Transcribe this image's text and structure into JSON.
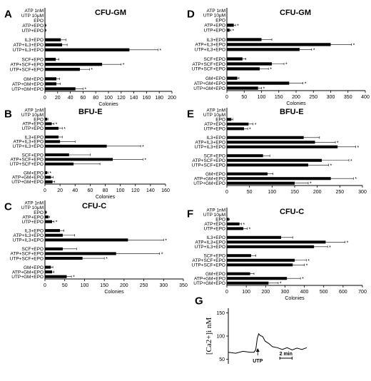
{
  "chart_data": [
    {
      "id": "A",
      "panel_label": "A",
      "type": "bar",
      "orientation": "horizontal",
      "title": "CFU-GM",
      "xlabel": "Colonies",
      "xlim": [
        0,
        200
      ],
      "ticks": [
        0,
        20,
        40,
        60,
        80,
        100,
        120,
        140,
        160,
        180,
        200
      ],
      "groups": [
        {
          "categories": [
            "ATP 1nM",
            "UTP 10μM",
            "EPO",
            "ATP+EPO",
            "UTP+EPO"
          ],
          "values": [
            0,
            0,
            0,
            1,
            1
          ],
          "errors": [
            0,
            0,
            0,
            1,
            1
          ],
          "significant": [
            false,
            false,
            false,
            false,
            false
          ]
        },
        {
          "categories": [
            "IL3+EPO",
            "ATP+IL3+EPO",
            "UTP+IL3+EPO"
          ],
          "values": [
            25,
            27,
            133
          ],
          "errors": [
            8,
            8,
            45
          ],
          "significant": [
            false,
            false,
            true
          ]
        },
        {
          "categories": [
            "SCF+EPO",
            "ATP+SCF+EPO",
            "UTP+SCF+EPO"
          ],
          "values": [
            17,
            90,
            55
          ],
          "errors": [
            5,
            30,
            15
          ],
          "significant": [
            false,
            true,
            true
          ]
        },
        {
          "categories": [
            "GM+EPO",
            "ATP+GM+EPO",
            "UTP+GM+EPO"
          ],
          "values": [
            18,
            18,
            48
          ],
          "errors": [
            5,
            6,
            12
          ],
          "significant": [
            false,
            false,
            true
          ]
        }
      ]
    },
    {
      "id": "B",
      "panel_label": "B",
      "type": "bar",
      "orientation": "horizontal",
      "title": "BFU-E",
      "xlabel": "Colonies",
      "xlim": [
        0,
        160
      ],
      "ticks": [
        0,
        20,
        40,
        60,
        80,
        100,
        120,
        140,
        160
      ],
      "groups": [
        {
          "categories": [
            "ATP 1nM",
            "UTP 10μM",
            "EPO",
            "ATP+EPO",
            "UTP+EPO"
          ],
          "values": [
            0,
            0,
            3,
            9,
            18
          ],
          "errors": [
            0,
            0,
            1,
            3,
            5
          ],
          "significant": [
            false,
            false,
            false,
            true,
            true
          ]
        },
        {
          "categories": [
            "IL3+EPO",
            "ATP+IL3+EPO",
            "UTP+IL3+EPO"
          ],
          "values": [
            18,
            20,
            82
          ],
          "errors": [
            5,
            20,
            45
          ],
          "significant": [
            false,
            false,
            true
          ]
        },
        {
          "categories": [
            "SCF+EPO",
            "ATP+SCF+EPO",
            "UTP+SCF+EPO"
          ],
          "values": [
            32,
            90,
            38
          ],
          "errors": [
            28,
            40,
            35
          ],
          "significant": [
            false,
            true,
            false
          ]
        },
        {
          "categories": [
            "GM+EPO",
            "ATP+GM+EPO",
            "UTP+GM+EPO"
          ],
          "values": [
            3,
            8,
            10
          ],
          "errors": [
            1,
            3,
            3
          ],
          "significant": [
            true,
            false,
            false
          ]
        }
      ]
    },
    {
      "id": "C",
      "panel_label": "C",
      "type": "bar",
      "orientation": "horizontal",
      "title": "CFU-C",
      "xlabel": "Colonies",
      "xlim": [
        0,
        350
      ],
      "ticks": [
        0,
        50,
        100,
        150,
        200,
        250,
        300,
        350
      ],
      "groups": [
        {
          "categories": [
            "ATP 1nM",
            "UTP 10μM",
            "EPO",
            "ATP+EPO",
            "UTP+EPO"
          ],
          "values": [
            0,
            0,
            3,
            9,
            18
          ],
          "errors": [
            0,
            0,
            1,
            3,
            5
          ],
          "significant": [
            false,
            false,
            false,
            false,
            true
          ]
        },
        {
          "categories": [
            "IL3+EPO",
            "ATP+IL3+EPO",
            "UTP+IL3+EPO"
          ],
          "values": [
            38,
            45,
            210
          ],
          "errors": [
            10,
            30,
            90
          ],
          "significant": [
            false,
            false,
            true
          ]
        },
        {
          "categories": [
            "SCF+EPO",
            "ATP+SCF+EPO",
            "UTP+SCF+EPO"
          ],
          "values": [
            45,
            180,
            95
          ],
          "errors": [
            35,
            110,
            55
          ],
          "significant": [
            false,
            true,
            true
          ]
        },
        {
          "categories": [
            "GM+EPO",
            "ATP+GM+EPO",
            "UTP+GM+EPO"
          ],
          "values": [
            15,
            18,
            55
          ],
          "errors": [
            5,
            5,
            12
          ],
          "significant": [
            false,
            false,
            true
          ]
        }
      ]
    },
    {
      "id": "D",
      "panel_label": "D",
      "type": "bar",
      "orientation": "horizontal",
      "title": "CFU-GM",
      "xlabel": "Colonies",
      "xlim": [
        0,
        400
      ],
      "ticks": [
        0,
        50,
        100,
        150,
        200,
        250,
        300,
        350,
        400
      ],
      "groups": [
        {
          "categories": [
            "ATP 1nM",
            "UTP 10μM",
            "EPO",
            "ATP+EPO",
            "UTP+EPO"
          ],
          "values": [
            0,
            0,
            0,
            20,
            8
          ],
          "errors": [
            0,
            0,
            0,
            5,
            3
          ],
          "significant": [
            false,
            false,
            false,
            true,
            true
          ]
        },
        {
          "categories": [
            "IL3+EPO",
            "ATP+IL3+EPO",
            "UTP+IL3+EPO"
          ],
          "values": [
            100,
            300,
            210
          ],
          "errors": [
            30,
            60,
            35
          ],
          "significant": [
            false,
            true,
            true
          ]
        },
        {
          "categories": [
            "SCF+EPO",
            "ATP+SCF+EPO",
            "UTP+SCF+EPO"
          ],
          "values": [
            45,
            130,
            95
          ],
          "errors": [
            10,
            35,
            25
          ],
          "significant": [
            false,
            true,
            true
          ]
        },
        {
          "categories": [
            "GM+EPO",
            "ATP+GM+EPO",
            "UTP+GM+EPO"
          ],
          "values": [
            30,
            180,
            90
          ],
          "errors": [
            5,
            40,
            10
          ],
          "significant": [
            false,
            true,
            true
          ]
        }
      ]
    },
    {
      "id": "E",
      "panel_label": "E",
      "type": "bar",
      "orientation": "horizontal",
      "title": "BFU-E",
      "xlabel": "",
      "xlim": [
        0,
        300
      ],
      "ticks": [
        0,
        50,
        100,
        150,
        200,
        250,
        300
      ],
      "groups": [
        {
          "categories": [
            "ATP 1nM",
            "UTP 10μM",
            "EPO",
            "ATP+EPO",
            "UTP+EPO"
          ],
          "values": [
            0,
            0,
            10,
            48,
            38
          ],
          "errors": [
            0,
            0,
            3,
            10,
            8
          ],
          "significant": [
            false,
            false,
            false,
            true,
            true
          ]
        },
        {
          "categories": [
            "IL3+EPO",
            "ATP+IL3+EPO",
            "UTP+IL3+EPO"
          ],
          "values": [
            170,
            195,
            245
          ],
          "errors": [
            35,
            45,
            40
          ],
          "significant": [
            false,
            true,
            true
          ]
        },
        {
          "categories": [
            "SCF+EPO",
            "ATP+SCF+EPO",
            "UTP+SCF+EPO"
          ],
          "values": [
            80,
            210,
            180
          ],
          "errors": [
            15,
            60,
            45
          ],
          "significant": [
            false,
            true,
            true
          ]
        },
        {
          "categories": [
            "GM+EPO",
            "ATP+GM+EPO",
            "UTP+GM+EPO"
          ],
          "values": [
            90,
            230,
            150
          ],
          "errors": [
            12,
            50,
            30
          ],
          "significant": [
            false,
            true,
            true
          ]
        }
      ]
    },
    {
      "id": "F",
      "panel_label": "F",
      "type": "bar",
      "orientation": "horizontal",
      "title": "CFU-C",
      "xlabel": "Colonies",
      "xlim": [
        0,
        700
      ],
      "ticks": [
        0,
        100,
        200,
        300,
        400,
        500,
        600,
        700
      ],
      "groups": [
        {
          "categories": [
            "ATP 1nM",
            "UTP 10μM",
            "EPO",
            "ATP+EPO",
            "UTP+EPO"
          ],
          "values": [
            0,
            0,
            10,
            65,
            85
          ],
          "errors": [
            0,
            0,
            3,
            10,
            20
          ],
          "significant": [
            false,
            false,
            false,
            true,
            true
          ]
        },
        {
          "categories": [
            "IL3+EPO",
            "ATP+IL3+EPO",
            "UTP+IL3+EPO"
          ],
          "values": [
            280,
            510,
            450
          ],
          "errors": [
            60,
            100,
            70
          ],
          "significant": [
            false,
            true,
            true
          ]
        },
        {
          "categories": [
            "SCF+EPO",
            "ATP+SCF+EPO",
            "UTP+SCF+EPO"
          ],
          "values": [
            125,
            350,
            340
          ],
          "errors": [
            25,
            60,
            60
          ],
          "significant": [
            false,
            true,
            true
          ]
        },
        {
          "categories": [
            "GM+EPO",
            "ATP+GM+EPO",
            "UTP+GM+EPO"
          ],
          "values": [
            120,
            310,
            215
          ],
          "errors": [
            20,
            70,
            50
          ],
          "significant": [
            false,
            true,
            true
          ]
        }
      ]
    },
    {
      "id": "G",
      "panel_label": "G",
      "type": "line",
      "ylabel": "[Ca2+]i nM",
      "yticks": [
        50,
        100,
        150
      ],
      "ylim": [
        40,
        160
      ],
      "xlim": [
        0,
        320
      ],
      "annotation": "UTP",
      "annotation_x": 120,
      "scalebar_label": "2 min",
      "scalebar_start": 210,
      "scalebar_end": 260,
      "x": [
        0,
        30,
        60,
        90,
        105,
        112,
        118,
        124,
        130,
        140,
        150,
        165,
        180,
        200,
        220,
        240,
        260,
        280,
        300,
        320
      ],
      "y": [
        66,
        62,
        68,
        64,
        66,
        70,
        96,
        104,
        102,
        98,
        90,
        83,
        78,
        74,
        72,
        74,
        71,
        73,
        72,
        74
      ]
    }
  ]
}
